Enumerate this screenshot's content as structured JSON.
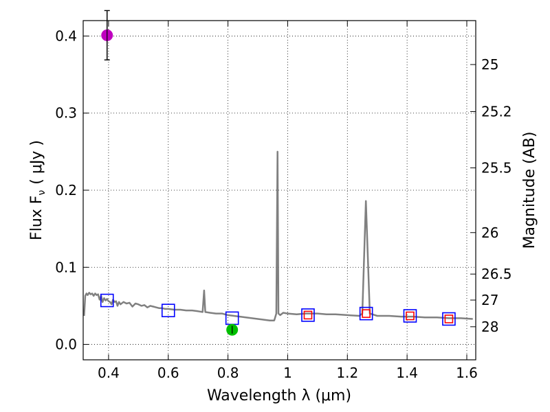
{
  "chart_data": {
    "type": "scatter",
    "xlabel": "Wavelength  λ (μm)",
    "ylabel": "Flux  F",
    "ylabel_sub": "ν",
    "ylabel_unit": "( μJy )",
    "y2label": "Magnitude (AB)",
    "xlim": [
      0.315,
      1.63
    ],
    "ylim": [
      -0.02,
      0.42
    ],
    "grid": true,
    "x_ticks": [
      {
        "value": 0.4,
        "label": "0.4"
      },
      {
        "value": 0.6,
        "label": "0.6"
      },
      {
        "value": 0.8,
        "label": "0.8"
      },
      {
        "value": 1.0,
        "label": "1"
      },
      {
        "value": 1.2,
        "label": "1.2"
      },
      {
        "value": 1.4,
        "label": "1.4"
      },
      {
        "value": 1.6,
        "label": "1.6"
      }
    ],
    "y_ticks": [
      {
        "value": 0.0,
        "label": "0.0"
      },
      {
        "value": 0.1,
        "label": "0.1"
      },
      {
        "value": 0.2,
        "label": "0.2"
      },
      {
        "value": 0.3,
        "label": "0.3"
      },
      {
        "value": 0.4,
        "label": "0.4"
      }
    ],
    "mag_ticks": [
      {
        "label": "25",
        "flux": 0.363
      },
      {
        "label": "25.2",
        "flux": 0.302
      },
      {
        "label": "25.5",
        "flux": 0.229
      },
      {
        "label": "26",
        "flux": 0.145
      },
      {
        "label": "26.5",
        "flux": 0.0912
      },
      {
        "label": "27",
        "flux": 0.0575
      },
      {
        "label": "28",
        "flux": 0.0229
      }
    ],
    "series": [
      {
        "name": "model spectrum",
        "kind": "line",
        "color": "#808080",
        "points": [
          [
            0.318,
            0.037
          ],
          [
            0.322,
            0.063
          ],
          [
            0.326,
            0.066
          ],
          [
            0.33,
            0.064
          ],
          [
            0.335,
            0.067
          ],
          [
            0.34,
            0.065
          ],
          [
            0.345,
            0.066
          ],
          [
            0.35,
            0.063
          ],
          [
            0.355,
            0.066
          ],
          [
            0.36,
            0.064
          ],
          [
            0.365,
            0.065
          ],
          [
            0.37,
            0.058
          ],
          [
            0.375,
            0.063
          ],
          [
            0.38,
            0.055
          ],
          [
            0.385,
            0.06
          ],
          [
            0.39,
            0.057
          ],
          [
            0.395,
            0.059
          ],
          [
            0.4,
            0.056
          ],
          [
            0.405,
            0.055
          ],
          [
            0.41,
            0.052
          ],
          [
            0.415,
            0.058
          ],
          [
            0.42,
            0.055
          ],
          [
            0.425,
            0.056
          ],
          [
            0.43,
            0.05
          ],
          [
            0.435,
            0.055
          ],
          [
            0.44,
            0.052
          ],
          [
            0.45,
            0.055
          ],
          [
            0.46,
            0.053
          ],
          [
            0.47,
            0.054
          ],
          [
            0.48,
            0.049
          ],
          [
            0.485,
            0.051
          ],
          [
            0.49,
            0.053
          ],
          [
            0.5,
            0.052
          ],
          [
            0.51,
            0.05
          ],
          [
            0.52,
            0.051
          ],
          [
            0.53,
            0.048
          ],
          [
            0.54,
            0.05
          ],
          [
            0.55,
            0.049
          ],
          [
            0.56,
            0.048
          ],
          [
            0.57,
            0.047
          ],
          [
            0.58,
            0.047
          ],
          [
            0.59,
            0.046
          ],
          [
            0.6,
            0.046
          ],
          [
            0.62,
            0.045
          ],
          [
            0.64,
            0.045
          ],
          [
            0.66,
            0.044
          ],
          [
            0.68,
            0.044
          ],
          [
            0.7,
            0.043
          ],
          [
            0.715,
            0.042
          ],
          [
            0.72,
            0.07
          ],
          [
            0.724,
            0.042
          ],
          [
            0.74,
            0.041
          ],
          [
            0.76,
            0.04
          ],
          [
            0.78,
            0.04
          ],
          [
            0.8,
            0.038
          ],
          [
            0.82,
            0.037
          ],
          [
            0.84,
            0.036
          ],
          [
            0.86,
            0.035
          ],
          [
            0.88,
            0.034
          ],
          [
            0.9,
            0.033
          ],
          [
            0.92,
            0.032
          ],
          [
            0.94,
            0.031
          ],
          [
            0.955,
            0.031
          ],
          [
            0.962,
            0.04
          ],
          [
            0.966,
            0.25
          ],
          [
            0.969,
            0.04
          ],
          [
            0.975,
            0.038
          ],
          [
            0.985,
            0.041
          ],
          [
            1.0,
            0.04
          ],
          [
            1.03,
            0.039
          ],
          [
            1.06,
            0.04
          ],
          [
            1.1,
            0.04
          ],
          [
            1.13,
            0.039
          ],
          [
            1.16,
            0.039
          ],
          [
            1.2,
            0.038
          ],
          [
            1.24,
            0.037
          ],
          [
            1.25,
            0.04
          ],
          [
            1.262,
            0.186
          ],
          [
            1.275,
            0.04
          ],
          [
            1.3,
            0.037
          ],
          [
            1.34,
            0.037
          ],
          [
            1.38,
            0.036
          ],
          [
            1.42,
            0.036
          ],
          [
            1.46,
            0.035
          ],
          [
            1.5,
            0.035
          ],
          [
            1.54,
            0.034
          ],
          [
            1.58,
            0.034
          ],
          [
            1.62,
            0.033
          ]
        ]
      },
      {
        "name": "model photometry (blue)",
        "kind": "open-square",
        "color": "#0000ff",
        "points": [
          [
            0.395,
            0.057
          ],
          [
            0.6,
            0.044
          ],
          [
            0.814,
            0.034
          ],
          [
            1.068,
            0.038
          ],
          [
            1.263,
            0.04
          ],
          [
            1.41,
            0.037
          ],
          [
            1.54,
            0.033
          ]
        ]
      },
      {
        "name": "model photometry (red)",
        "kind": "open-square-small",
        "color": "#ff0000",
        "points": [
          [
            1.068,
            0.038
          ],
          [
            1.263,
            0.04
          ],
          [
            1.41,
            0.037
          ],
          [
            1.54,
            0.033
          ]
        ]
      },
      {
        "name": "observed (magenta)",
        "kind": "filled-circle",
        "color": "#bf00bf",
        "points": [
          [
            0.395,
            0.401,
            0.032
          ]
        ]
      },
      {
        "name": "observed (green)",
        "kind": "filled-circle",
        "color": "#00bf00",
        "points": [
          [
            0.814,
            0.019,
            0.005
          ]
        ]
      }
    ]
  }
}
